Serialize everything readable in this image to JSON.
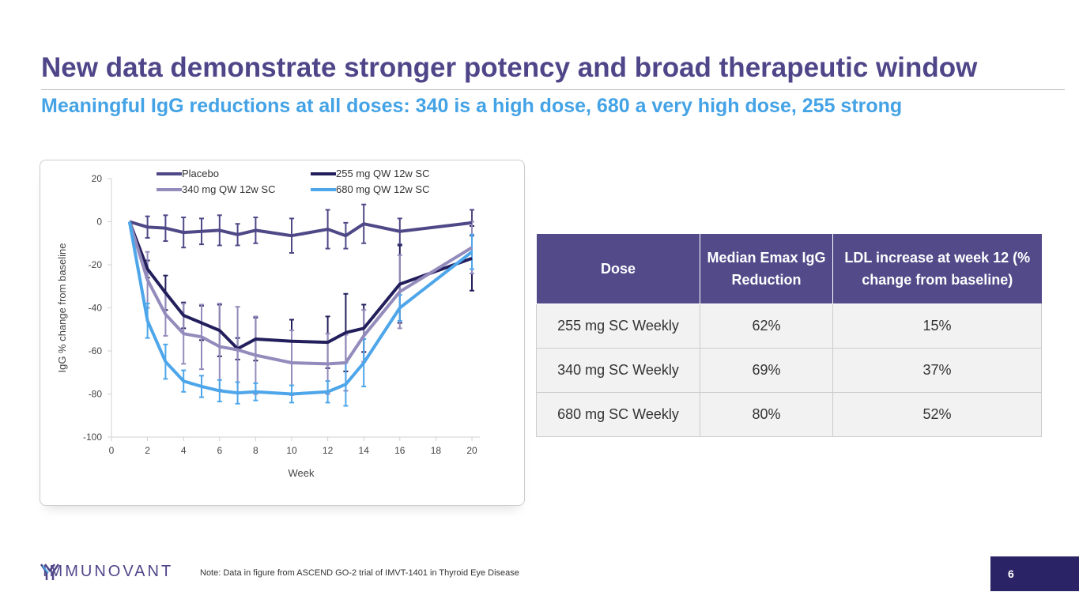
{
  "header": {
    "title": "New data demonstrate stronger potency and broad therapeutic window",
    "subtitle": "Meaningful IgG reductions at all doses: 340 is a high dose, 680 a very high dose, 255 strong"
  },
  "chart_data": {
    "type": "line",
    "xlabel": "Week",
    "ylabel": "IgG % change from baseline",
    "xlim": [
      0,
      20
    ],
    "ylim": [
      -100,
      20
    ],
    "xticks": [
      0,
      2,
      4,
      6,
      8,
      10,
      12,
      14,
      16,
      18,
      20
    ],
    "yticks": [
      20,
      0,
      -20,
      -40,
      -60,
      -80,
      -100
    ],
    "legend": "top",
    "series": [
      {
        "name": "Placebo",
        "color": "#4e4887",
        "x": [
          1,
          2,
          3,
          4,
          5,
          6,
          7,
          8,
          10,
          12,
          13,
          14,
          16,
          20
        ],
        "values": [
          0,
          -2.5,
          -3,
          -5,
          -4.5,
          -4,
          -6,
          -4,
          -6.5,
          -3.5,
          -6.5,
          -1,
          -4.5,
          -0.5
        ],
        "error": [
          0,
          5,
          6,
          7,
          6,
          7,
          5,
          6,
          8,
          9,
          6,
          9,
          6,
          6
        ]
      },
      {
        "name": "255 mg QW 12w SC",
        "color": "#231f5c",
        "x": [
          1,
          2,
          3,
          4,
          5,
          6,
          7,
          8,
          10,
          12,
          13,
          14,
          16,
          20
        ],
        "values": [
          0,
          -22,
          -33,
          -43.5,
          -47,
          -50.5,
          -59,
          -54.5,
          -55.5,
          -56,
          -51.5,
          -49.5,
          -29,
          -17
        ],
        "error": [
          0,
          4,
          8,
          6,
          8,
          12,
          5,
          10,
          10,
          12,
          18,
          11,
          18,
          15
        ]
      },
      {
        "name": "340 mg QW 12w SC",
        "color": "#938bbb",
        "x": [
          1,
          2,
          3,
          4,
          5,
          6,
          7,
          8,
          10,
          12,
          13,
          14,
          16,
          20
        ],
        "values": [
          0,
          -27,
          -43,
          -52,
          -53.5,
          -58,
          -59.5,
          -62,
          -65.5,
          -66,
          -65.5,
          -53,
          -32.5,
          -12
        ],
        "error": [
          0,
          13,
          10,
          14,
          15,
          20,
          20,
          18,
          15,
          14,
          13,
          12,
          17,
          12
        ]
      },
      {
        "name": "680 mg QW 12w SC",
        "color": "#4ea6ea",
        "x": [
          1,
          2,
          3,
          4,
          5,
          6,
          7,
          8,
          10,
          12,
          13,
          14,
          16,
          20
        ],
        "values": [
          0,
          -46,
          -65,
          -74,
          -76.5,
          -78.5,
          -79.5,
          -79,
          -80,
          -79,
          -75.5,
          -65.5,
          -40,
          -14
        ],
        "error": [
          0,
          8,
          8,
          5,
          5,
          5,
          5,
          4,
          4,
          5,
          10,
          11,
          6,
          8
        ]
      }
    ]
  },
  "table": {
    "headers": [
      "Dose",
      "Median Emax IgG Reduction",
      "LDL increase at week 12 (% change from baseline)"
    ],
    "rows": [
      [
        "255 mg SC Weekly",
        "62%",
        "15%"
      ],
      [
        "340 mg SC Weekly",
        "69%",
        "37%"
      ],
      [
        "680 mg SC Weekly",
        "80%",
        "52%"
      ]
    ]
  },
  "footer": {
    "logo": "IMMUNOVANT",
    "note": "Note: Data in figure from ASCEND GO-2 trial of IMVT-1401 in Thyroid Eye Disease",
    "page": "6"
  }
}
